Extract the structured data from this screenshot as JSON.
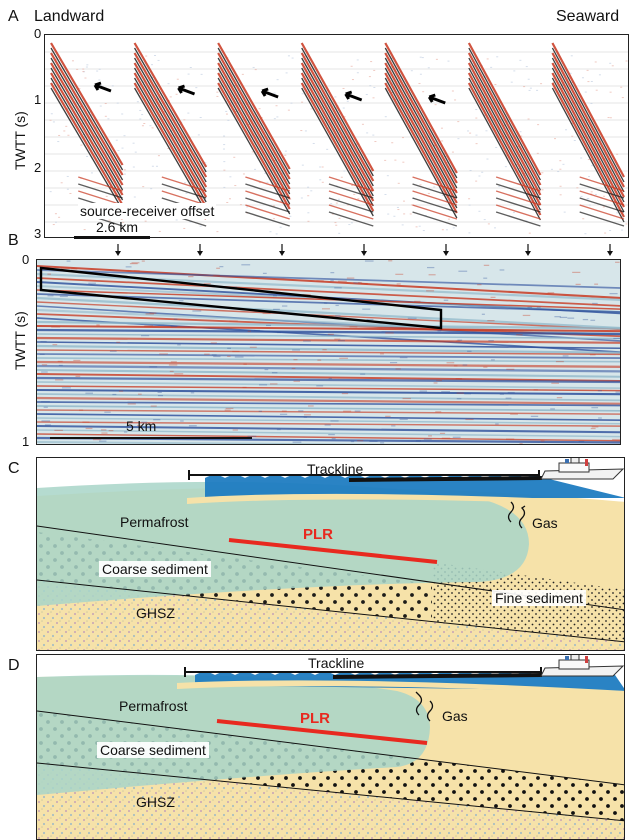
{
  "panel_a": {
    "letter": "A",
    "left_header": "Landward",
    "right_header": "Seaward",
    "y_label": "TWTT (s)",
    "y_ticks": [
      "0",
      "1",
      "2",
      "3"
    ],
    "offset_label": "source-receiver offset",
    "scale_label": "2.6 km",
    "gather_count": 7
  },
  "panel_b": {
    "letter": "B",
    "y_label": "TWTT (s)",
    "y_ticks": [
      "0",
      "1"
    ],
    "scale_label": "5 km"
  },
  "panel_c": {
    "letter": "C",
    "trackline": "Trackline",
    "permafrost": "Permafrost",
    "plr": "PLR",
    "gas": "Gas",
    "coarse": "Coarse sediment",
    "fine": "Fine sediment",
    "ghsz": "GHSZ"
  },
  "panel_d": {
    "letter": "D",
    "trackline": "Trackline",
    "permafrost": "Permafrost",
    "plr": "PLR",
    "gas": "Gas",
    "coarse": "Coarse sediment",
    "ghsz": "GHSZ"
  },
  "colors": {
    "permafrost": "#a9d5c8",
    "sediment": "#f6e2a9",
    "water": "#1f7cc1",
    "plr": "#e8291f",
    "seismic_red": "#c8361e",
    "seismic_blue": "#2d4f9c"
  }
}
